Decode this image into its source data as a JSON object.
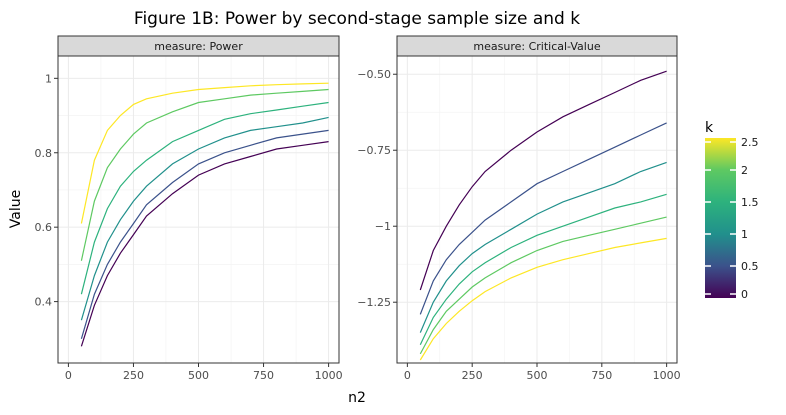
{
  "chart_data": {
    "type": "line",
    "title": "Figure 1B: Power by second-stage sample size and k",
    "xlabel": "n2",
    "ylabel": "Value",
    "x_ticks": [
      0,
      250,
      500,
      750,
      1000
    ],
    "x_tick_labels": [
      "0",
      "250",
      "500",
      "750",
      "1000"
    ],
    "xlim": [
      -40,
      1040
    ],
    "legend": {
      "title": "k",
      "position": "right",
      "range": [
        0,
        2.5
      ],
      "ticks": [
        0,
        0.5,
        1,
        1.5,
        2,
        2.5
      ],
      "tick_labels": [
        "0",
        "0.5",
        "1",
        "1.5",
        "2",
        "2.5"
      ]
    },
    "colors": {
      "k0": "#440154",
      "k0_5": "#3b528b",
      "k1": "#21908c",
      "k1_5": "#2db27d",
      "k2": "#5ec962",
      "k2_5": "#fde725",
      "strip": "#d9d9d9",
      "grid": "#ebebeb"
    },
    "panels": [
      {
        "strip": "measure: Power",
        "ylim": [
          0.235,
          1.06
        ],
        "y_ticks": [
          0.4,
          0.6,
          0.8,
          1.0
        ],
        "y_tick_labels": [
          "0.4",
          "0.6",
          "0.8",
          "1"
        ],
        "series": [
          {
            "k": 0,
            "color": "#440154",
            "x": [
              50,
              100,
              150,
              200,
              250,
              300,
              400,
              500,
              600,
              700,
              800,
              900,
              1000
            ],
            "y": [
              0.28,
              0.39,
              0.47,
              0.53,
              0.58,
              0.63,
              0.69,
              0.74,
              0.77,
              0.79,
              0.81,
              0.82,
              0.83
            ]
          },
          {
            "k": 0.5,
            "color": "#3b528b",
            "x": [
              50,
              100,
              150,
              200,
              250,
              300,
              400,
              500,
              600,
              700,
              800,
              900,
              1000
            ],
            "y": [
              0.3,
              0.42,
              0.5,
              0.56,
              0.61,
              0.66,
              0.72,
              0.77,
              0.8,
              0.82,
              0.84,
              0.85,
              0.86
            ]
          },
          {
            "k": 1,
            "color": "#21908c",
            "x": [
              50,
              100,
              150,
              200,
              250,
              300,
              400,
              500,
              600,
              700,
              800,
              900,
              1000
            ],
            "y": [
              0.35,
              0.47,
              0.56,
              0.62,
              0.67,
              0.71,
              0.77,
              0.81,
              0.84,
              0.86,
              0.87,
              0.88,
              0.895
            ]
          },
          {
            "k": 1.5,
            "color": "#2db27d",
            "x": [
              50,
              100,
              150,
              200,
              250,
              300,
              400,
              500,
              600,
              700,
              800,
              900,
              1000
            ],
            "y": [
              0.42,
              0.56,
              0.65,
              0.71,
              0.75,
              0.78,
              0.83,
              0.86,
              0.89,
              0.905,
              0.915,
              0.925,
              0.935
            ]
          },
          {
            "k": 2,
            "color": "#5ec962",
            "x": [
              50,
              100,
              150,
              200,
              250,
              300,
              400,
              500,
              600,
              700,
              800,
              900,
              1000
            ],
            "y": [
              0.51,
              0.67,
              0.76,
              0.81,
              0.85,
              0.88,
              0.91,
              0.935,
              0.945,
              0.955,
              0.96,
              0.965,
              0.97
            ]
          },
          {
            "k": 2.5,
            "color": "#fde725",
            "x": [
              50,
              100,
              150,
              200,
              250,
              300,
              400,
              500,
              600,
              700,
              800,
              900,
              1000
            ],
            "y": [
              0.61,
              0.78,
              0.86,
              0.9,
              0.93,
              0.945,
              0.96,
              0.97,
              0.975,
              0.98,
              0.983,
              0.985,
              0.987
            ]
          }
        ]
      },
      {
        "strip": "measure: Critical-Value",
        "ylim": [
          -1.45,
          -0.44
        ],
        "y_ticks": [
          -1.25,
          -1.0,
          -0.75,
          -0.5
        ],
        "y_tick_labels": [
          "−1.25",
          "−1",
          "−0.75",
          "−0.50"
        ],
        "series": [
          {
            "k": 0,
            "color": "#440154",
            "x": [
              50,
              100,
              150,
              200,
              250,
              300,
              400,
              500,
              600,
              700,
              800,
              900,
              1000
            ],
            "y": [
              -1.21,
              -1.08,
              -1.0,
              -0.93,
              -0.87,
              -0.82,
              -0.75,
              -0.69,
              -0.64,
              -0.6,
              -0.56,
              -0.52,
              -0.49
            ]
          },
          {
            "k": 0.5,
            "color": "#3b528b",
            "x": [
              50,
              100,
              150,
              200,
              250,
              300,
              400,
              500,
              600,
              700,
              800,
              900,
              1000
            ],
            "y": [
              -1.29,
              -1.18,
              -1.11,
              -1.06,
              -1.02,
              -0.98,
              -0.92,
              -0.86,
              -0.82,
              -0.78,
              -0.74,
              -0.7,
              -0.66
            ]
          },
          {
            "k": 1,
            "color": "#21908c",
            "x": [
              50,
              100,
              150,
              200,
              250,
              300,
              400,
              500,
              600,
              700,
              800,
              900,
              1000
            ],
            "y": [
              -1.35,
              -1.25,
              -1.18,
              -1.13,
              -1.09,
              -1.06,
              -1.01,
              -0.96,
              -0.92,
              -0.89,
              -0.86,
              -0.82,
              -0.79
            ]
          },
          {
            "k": 1.5,
            "color": "#2db27d",
            "x": [
              50,
              100,
              150,
              200,
              250,
              300,
              400,
              500,
              600,
              700,
              800,
              900,
              1000
            ],
            "y": [
              -1.39,
              -1.3,
              -1.24,
              -1.19,
              -1.15,
              -1.12,
              -1.07,
              -1.03,
              -1.0,
              -0.97,
              -0.94,
              -0.92,
              -0.895
            ]
          },
          {
            "k": 2,
            "color": "#5ec962",
            "x": [
              50,
              100,
              150,
              200,
              250,
              300,
              400,
              500,
              600,
              700,
              800,
              900,
              1000
            ],
            "y": [
              -1.42,
              -1.34,
              -1.28,
              -1.24,
              -1.2,
              -1.17,
              -1.12,
              -1.08,
              -1.05,
              -1.03,
              -1.01,
              -0.99,
              -0.97
            ]
          },
          {
            "k": 2.5,
            "color": "#fde725",
            "x": [
              50,
              100,
              150,
              200,
              250,
              300,
              400,
              500,
              600,
              700,
              800,
              900,
              1000
            ],
            "y": [
              -1.44,
              -1.37,
              -1.32,
              -1.28,
              -1.245,
              -1.215,
              -1.17,
              -1.135,
              -1.11,
              -1.09,
              -1.07,
              -1.055,
              -1.04
            ]
          }
        ]
      }
    ]
  }
}
